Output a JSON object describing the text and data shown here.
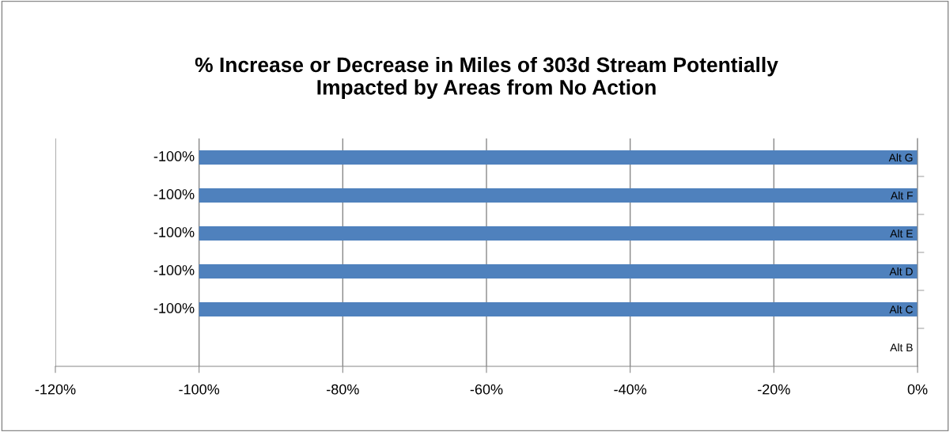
{
  "chart_data": {
    "type": "bar",
    "orientation": "horizontal",
    "title": "% Increase or Decrease in Miles of 303d Stream Potentially\nImpacted by Areas from No Action",
    "categories": [
      "Alt G",
      "Alt F",
      "Alt E",
      "Alt D",
      "Alt C",
      "Alt B"
    ],
    "values": [
      -100,
      -100,
      -100,
      -100,
      -100,
      0
    ],
    "value_labels": [
      "-100%",
      "-100%",
      "-100%",
      "-100%",
      "-100%",
      null
    ],
    "color": "#4f81bd",
    "xlim": [
      -120,
      0
    ],
    "xticks": [
      {
        "value": -120,
        "label": "-120%"
      },
      {
        "value": -100,
        "label": "-100%"
      },
      {
        "value": -80,
        "label": "-80%"
      },
      {
        "value": -60,
        "label": "-60%"
      },
      {
        "value": -40,
        "label": "-40%"
      },
      {
        "value": -20,
        "label": "-20%"
      },
      {
        "value": 0,
        "label": "0%"
      }
    ],
    "grid": "x",
    "legend": false
  }
}
